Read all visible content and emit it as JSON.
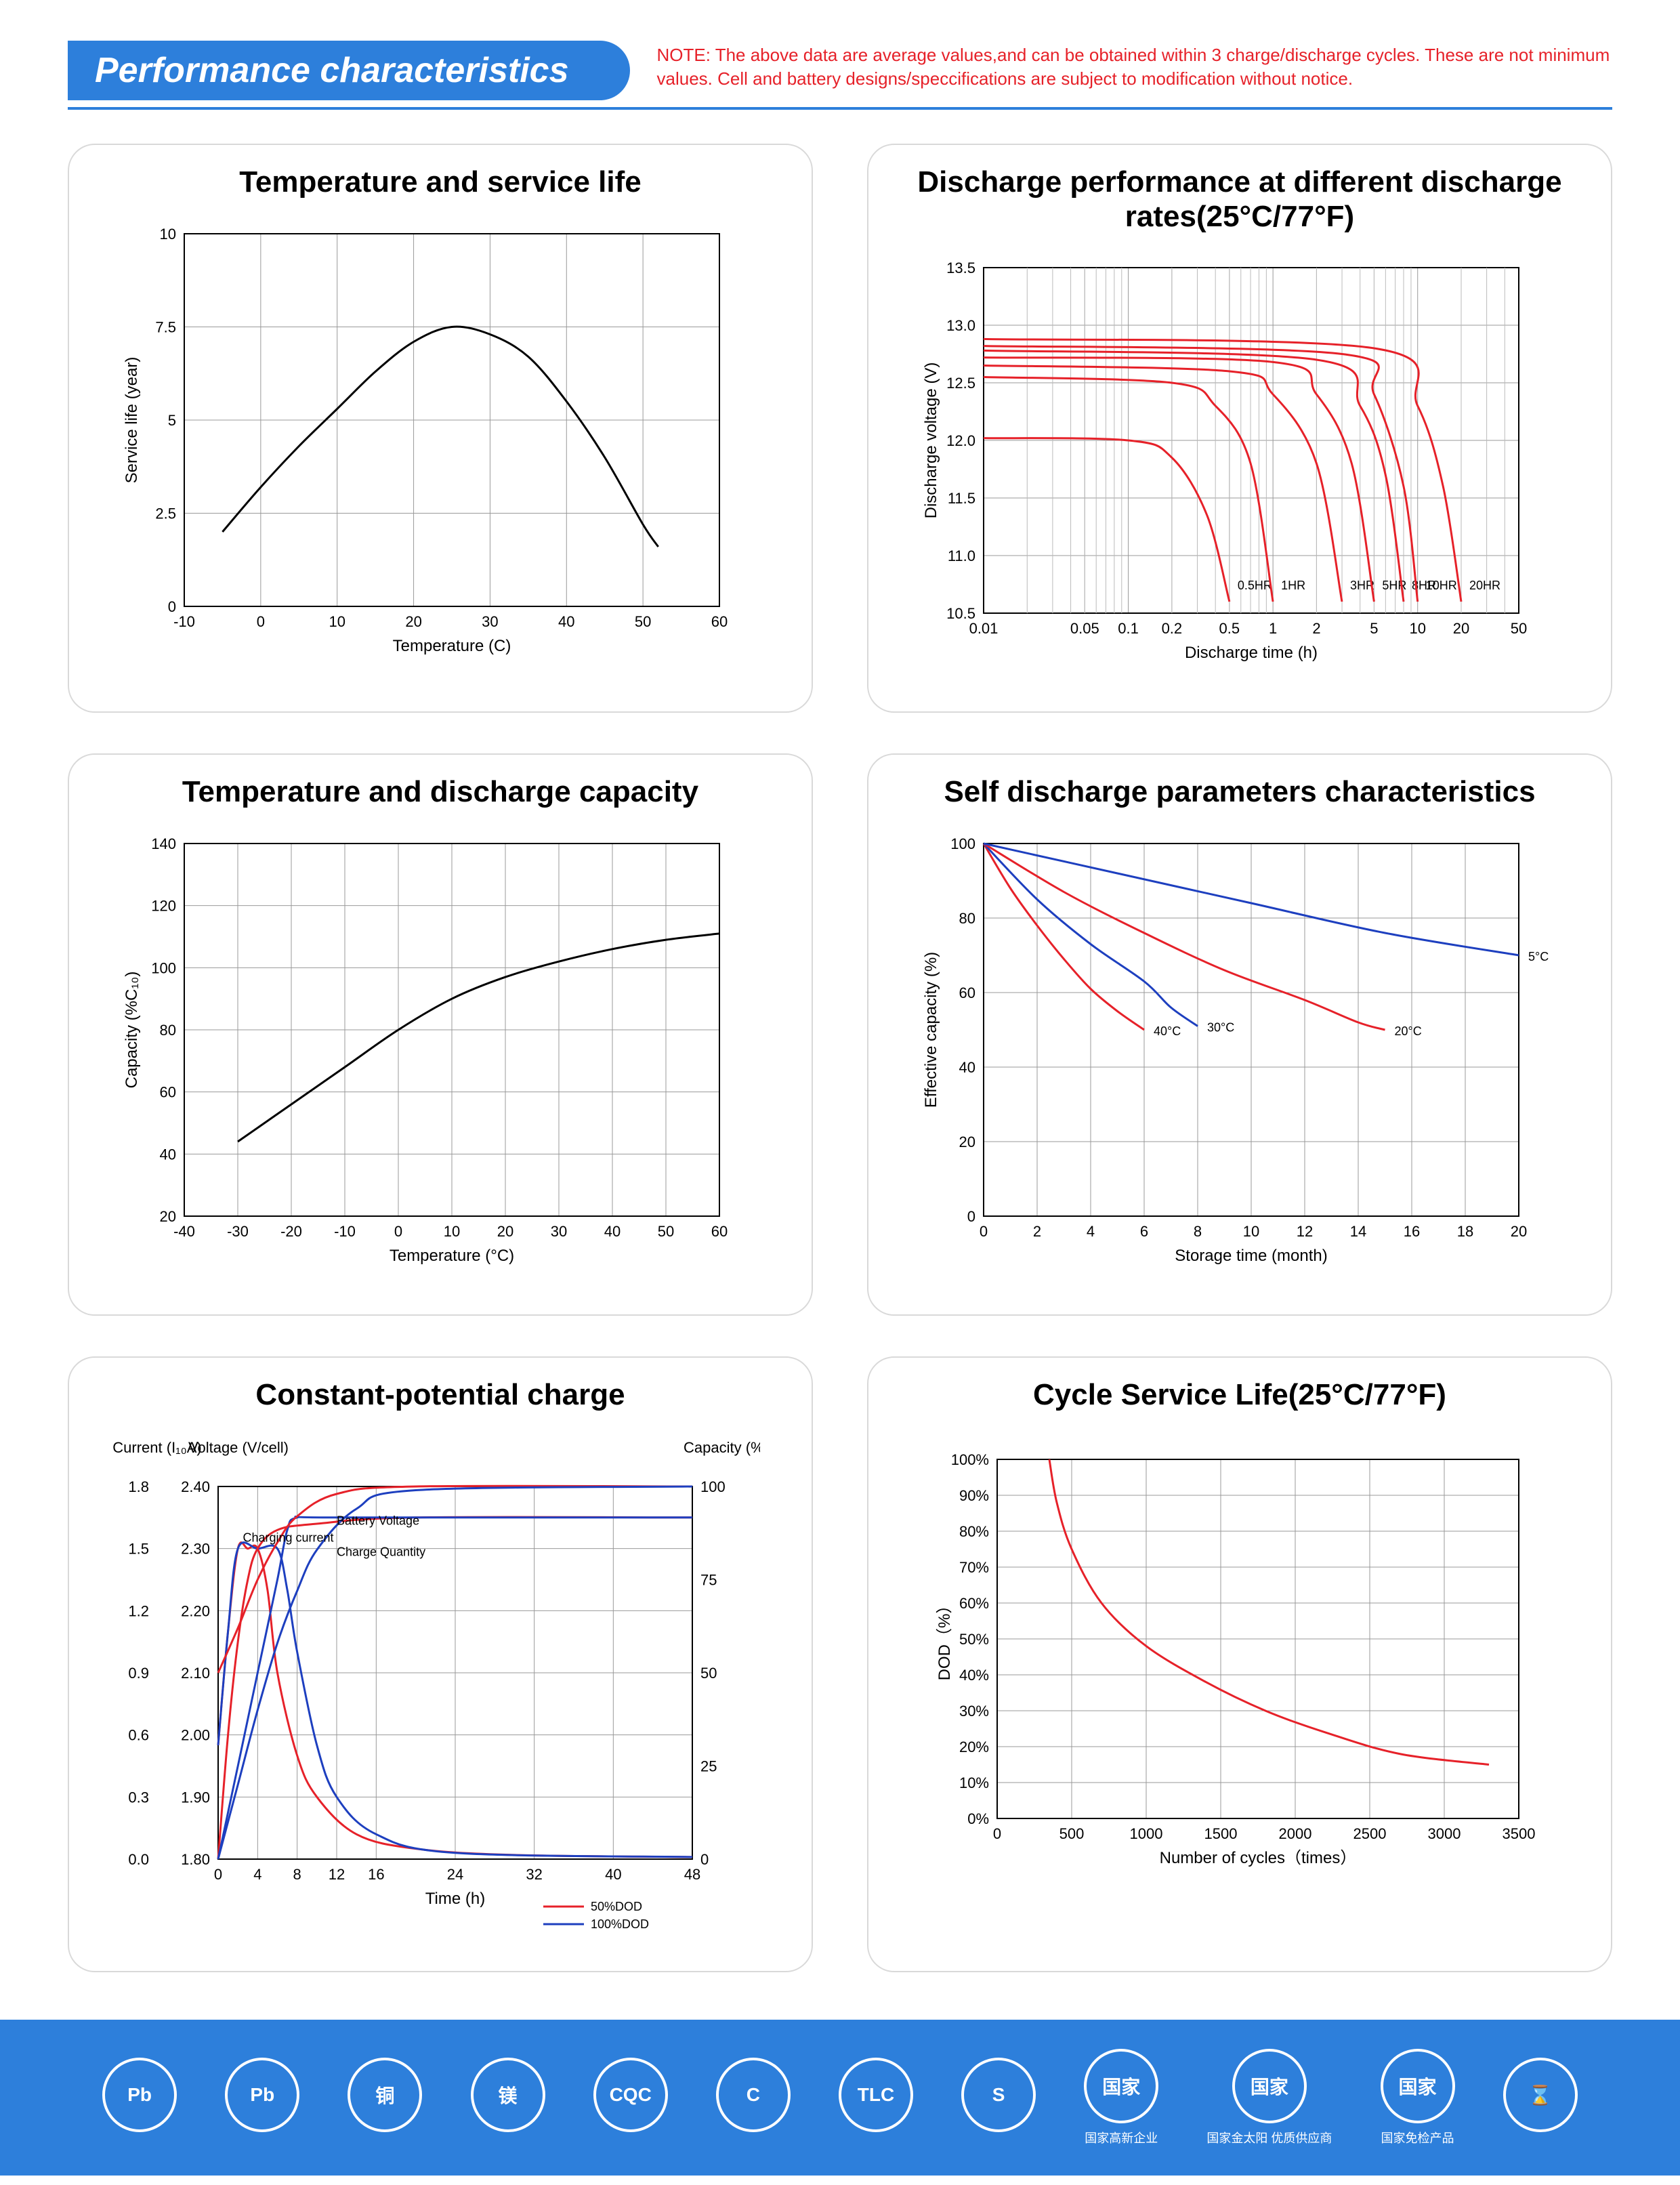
{
  "header": {
    "title": "Performance characteristics",
    "note": "NOTE: The above data are average values,and can be obtained within 3 charge/discharge cycles. These are not minimum values. Cell and battery designs/speccifications are subject to modification without notice."
  },
  "colors": {
    "brand_blue": "#2d7fdb",
    "warn_red": "#e62129",
    "axis": "#000000",
    "grid": "#999999",
    "series_black": "#000000",
    "series_red": "#e62129",
    "series_blue": "#1d3fbf",
    "card_border": "#d9d9d9"
  },
  "charts": {
    "temp_life": {
      "title": "Temperature and service life",
      "type": "line",
      "xlabel": "Temperature (C)",
      "ylabel": "Service life (year)",
      "xlim": [
        -10,
        60
      ],
      "xtick_step": 10,
      "ylim": [
        0,
        10
      ],
      "yticks": [
        0,
        2.5,
        5,
        7.5,
        10
      ],
      "stroke": "#000000",
      "stroke_width": 3,
      "points": [
        [
          -5,
          2.0
        ],
        [
          0,
          3.2
        ],
        [
          5,
          4.3
        ],
        [
          10,
          5.3
        ],
        [
          15,
          6.3
        ],
        [
          20,
          7.1
        ],
        [
          25,
          7.5
        ],
        [
          30,
          7.3
        ],
        [
          35,
          6.7
        ],
        [
          40,
          5.5
        ],
        [
          45,
          4.0
        ],
        [
          50,
          2.2
        ],
        [
          52,
          1.6
        ]
      ]
    },
    "temp_capacity": {
      "title": "Temperature and discharge capacity",
      "type": "line",
      "xlabel": "Temperature (°C)",
      "ylabel": "Capacity (%C₁₀)",
      "xlim": [
        -40,
        60
      ],
      "xticks": [
        -40,
        -30,
        -20,
        -10,
        0,
        10,
        20,
        30,
        40,
        50,
        60
      ],
      "ylim": [
        20,
        140
      ],
      "ytick_step": 20,
      "stroke": "#000000",
      "stroke_width": 3,
      "points": [
        [
          -30,
          44
        ],
        [
          -20,
          56
        ],
        [
          -10,
          68
        ],
        [
          0,
          80
        ],
        [
          10,
          90
        ],
        [
          20,
          97
        ],
        [
          30,
          102
        ],
        [
          40,
          106
        ],
        [
          50,
          109
        ],
        [
          60,
          111
        ]
      ]
    },
    "discharge_rates": {
      "title": "Discharge performance at different discharge rates(25°C/77°F)",
      "type": "line-log-x",
      "xlabel": "Discharge time (h)",
      "ylabel": "Discharge voltage (V)",
      "xlim_log": [
        0.01,
        50
      ],
      "xticks_log": [
        0.01,
        0.05,
        0.1,
        0.2,
        0.5,
        1,
        2,
        5,
        10,
        20,
        50
      ],
      "ylim": [
        10.5,
        13.5
      ],
      "ytick_step": 0.5,
      "stroke": "#e62129",
      "stroke_width": 3,
      "series": [
        {
          "label": "0.5HR",
          "points": [
            [
              0.01,
              12.02
            ],
            [
              0.1,
              12.0
            ],
            [
              0.2,
              11.85
            ],
            [
              0.35,
              11.35
            ],
            [
              0.5,
              10.6
            ]
          ]
        },
        {
          "label": "1HR",
          "points": [
            [
              0.01,
              12.55
            ],
            [
              0.2,
              12.5
            ],
            [
              0.4,
              12.3
            ],
            [
              0.7,
              11.8
            ],
            [
              1.0,
              10.6
            ]
          ]
        },
        {
          "label": "3HR",
          "points": [
            [
              0.01,
              12.65
            ],
            [
              0.5,
              12.6
            ],
            [
              1.0,
              12.4
            ],
            [
              2.0,
              11.8
            ],
            [
              3.0,
              10.6
            ]
          ]
        },
        {
          "label": "5HR",
          "points": [
            [
              0.01,
              12.72
            ],
            [
              1.0,
              12.68
            ],
            [
              2.0,
              12.4
            ],
            [
              3.5,
              11.8
            ],
            [
              5.0,
              10.6
            ]
          ]
        },
        {
          "label": "8HR",
          "points": [
            [
              0.01,
              12.78
            ],
            [
              2.0,
              12.7
            ],
            [
              4.0,
              12.3
            ],
            [
              6.0,
              11.7
            ],
            [
              8.0,
              10.6
            ]
          ]
        },
        {
          "label": "10HR",
          "points": [
            [
              0.01,
              12.82
            ],
            [
              3.0,
              12.75
            ],
            [
              5.0,
              12.4
            ],
            [
              8.0,
              11.6
            ],
            [
              10.0,
              10.6
            ]
          ]
        },
        {
          "label": "20HR",
          "points": [
            [
              0.01,
              12.88
            ],
            [
              5.0,
              12.8
            ],
            [
              10.0,
              12.3
            ],
            [
              15.0,
              11.6
            ],
            [
              20.0,
              10.6
            ]
          ]
        }
      ]
    },
    "self_discharge": {
      "title": "Self discharge parameters characteristics",
      "type": "line",
      "xlabel": "Storage time (month)",
      "ylabel": "Effective capacity (%)",
      "xlim": [
        0,
        20
      ],
      "xtick_step": 2,
      "ylim": [
        0,
        100
      ],
      "ytick_step": 20,
      "series": [
        {
          "label": "40°C",
          "color": "#e62129",
          "points": [
            [
              0,
              100
            ],
            [
              1,
              88
            ],
            [
              2,
              78
            ],
            [
              3,
              69
            ],
            [
              4,
              61
            ],
            [
              5,
              55
            ],
            [
              6,
              50
            ]
          ]
        },
        {
          "label": "30°C",
          "color": "#1d3fbf",
          "points": [
            [
              0,
              100
            ],
            [
              2,
              85
            ],
            [
              4,
              73
            ],
            [
              6,
              63
            ],
            [
              7,
              56
            ],
            [
              8,
              51
            ]
          ]
        },
        {
          "label": "20°C",
          "color": "#e62129",
          "points": [
            [
              0,
              100
            ],
            [
              3,
              87
            ],
            [
              6,
              76
            ],
            [
              9,
              66
            ],
            [
              12,
              58
            ],
            [
              14,
              52
            ],
            [
              15,
              50
            ]
          ]
        },
        {
          "label": "5°C",
          "color": "#1d3fbf",
          "points": [
            [
              0,
              100
            ],
            [
              5,
              92
            ],
            [
              10,
              84
            ],
            [
              15,
              76
            ],
            [
              20,
              70
            ]
          ]
        }
      ]
    },
    "const_potential": {
      "title": "Constant-potential charge",
      "type": "multi-axis",
      "xlabel": "Time (h)",
      "xlim": [
        0,
        48
      ],
      "xticks": [
        0,
        4,
        8,
        12,
        16,
        24,
        32,
        40,
        48
      ],
      "left1_label": "Current (I₁₀A)",
      "left1_lim": [
        0,
        1.8
      ],
      "left1_step": 0.3,
      "left2_label": "Voltage (V/cell)",
      "left2_lim": [
        1.8,
        2.4
      ],
      "left2_step": 0.1,
      "right_label": "Capacity (%)",
      "right_lim": [
        0,
        100
      ],
      "right_ticks": [
        0,
        25,
        50,
        75,
        100
      ],
      "legend": [
        {
          "label": "50%DOD",
          "color": "#e62129"
        },
        {
          "label": "100%DOD",
          "color": "#1d3fbf"
        }
      ],
      "annotations": [
        "Charging current",
        "Battery Voltage",
        "Charge Quantity"
      ],
      "series": [
        {
          "name": "current-50",
          "color": "#e62129",
          "lim": "left1",
          "points": [
            [
              0,
              0.55
            ],
            [
              1,
              1.1
            ],
            [
              2,
              1.5
            ],
            [
              3,
              1.5
            ],
            [
              4,
              1.5
            ],
            [
              5,
              1.3
            ],
            [
              6,
              0.9
            ],
            [
              8,
              0.5
            ],
            [
              10,
              0.3
            ],
            [
              14,
              0.12
            ],
            [
              20,
              0.05
            ],
            [
              30,
              0.02
            ],
            [
              48,
              0.01
            ]
          ]
        },
        {
          "name": "current-100",
          "color": "#1d3fbf",
          "lim": "left1",
          "points": [
            [
              0,
              0.55
            ],
            [
              1,
              1.1
            ],
            [
              2,
              1.5
            ],
            [
              4,
              1.5
            ],
            [
              6,
              1.5
            ],
            [
              7,
              1.3
            ],
            [
              8,
              1.0
            ],
            [
              10,
              0.55
            ],
            [
              12,
              0.3
            ],
            [
              16,
              0.12
            ],
            [
              24,
              0.03
            ],
            [
              48,
              0.01
            ]
          ]
        },
        {
          "name": "voltage-50",
          "color": "#e62129",
          "lim": "left2",
          "points": [
            [
              0,
              1.8
            ],
            [
              1,
              2.0
            ],
            [
              2,
              2.15
            ],
            [
              3,
              2.25
            ],
            [
              4,
              2.3
            ],
            [
              6,
              2.33
            ],
            [
              10,
              2.34
            ],
            [
              20,
              2.35
            ],
            [
              48,
              2.35
            ]
          ]
        },
        {
          "name": "voltage-100",
          "color": "#1d3fbf",
          "lim": "left2",
          "points": [
            [
              0,
              1.8
            ],
            [
              2,
              1.95
            ],
            [
              4,
              2.1
            ],
            [
              6,
              2.25
            ],
            [
              7,
              2.33
            ],
            [
              8,
              2.35
            ],
            [
              12,
              2.35
            ],
            [
              48,
              2.35
            ]
          ]
        },
        {
          "name": "capacity-50",
          "color": "#e62129",
          "lim": "right",
          "points": [
            [
              0,
              50
            ],
            [
              2,
              62
            ],
            [
              4,
              75
            ],
            [
              6,
              85
            ],
            [
              8,
              92
            ],
            [
              12,
              98
            ],
            [
              20,
              100
            ],
            [
              48,
              100
            ]
          ]
        },
        {
          "name": "capacity-100",
          "color": "#1d3fbf",
          "lim": "right",
          "points": [
            [
              0,
              0
            ],
            [
              2,
              20
            ],
            [
              4,
              40
            ],
            [
              6,
              58
            ],
            [
              8,
              72
            ],
            [
              10,
              83
            ],
            [
              14,
              94
            ],
            [
              20,
              99
            ],
            [
              48,
              100
            ]
          ]
        }
      ]
    },
    "cycle_life": {
      "title": "Cycle Service Life(25°C/77°F)",
      "type": "line",
      "xlabel": "Number of cycles（times）",
      "ylabel": "DOD（%）",
      "xlim": [
        0,
        3500
      ],
      "xtick_step": 500,
      "ylim": [
        0,
        100
      ],
      "ytick_step": 10,
      "ytick_suffix": "%",
      "stroke": "#e62129",
      "stroke_width": 3,
      "points": [
        [
          350,
          100
        ],
        [
          400,
          88
        ],
        [
          500,
          75
        ],
        [
          700,
          60
        ],
        [
          1000,
          48
        ],
        [
          1400,
          38
        ],
        [
          1800,
          30
        ],
        [
          2200,
          24
        ],
        [
          2700,
          18
        ],
        [
          3300,
          15
        ]
      ]
    }
  },
  "footer_certs": [
    "Pb",
    "Pb",
    "铜",
    "镁",
    "CQC",
    "C",
    "TLC",
    "S",
    "国家高新企业",
    "国家金太阳 优质供应商",
    "国家免检产品",
    "⌛"
  ]
}
